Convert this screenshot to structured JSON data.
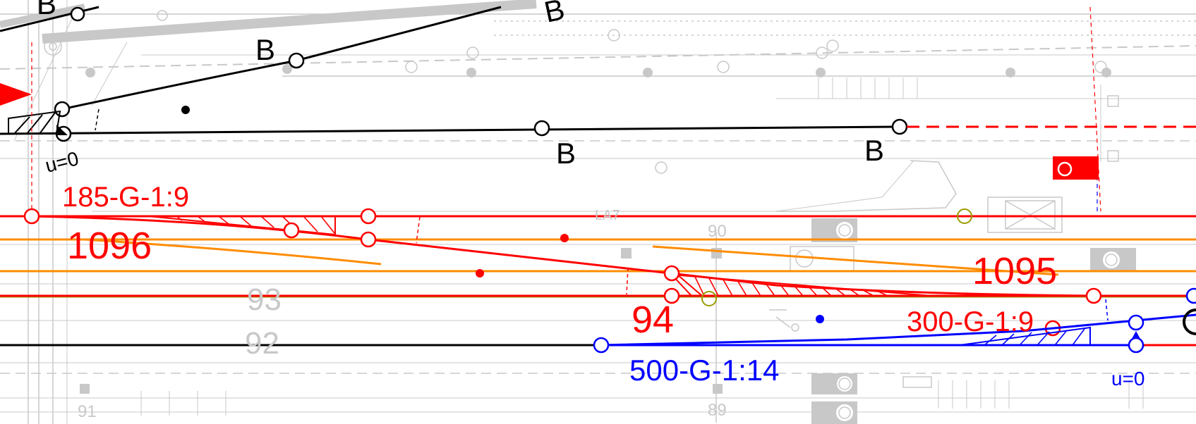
{
  "labels": {
    "b1": "B",
    "b2": "B",
    "b3": "B",
    "b4": "B",
    "b5": "B",
    "u0_left": "u=0",
    "u0_right": "u=0",
    "switch_185": "185-G-1:9",
    "num_1096": "1096",
    "num_1095": "1095",
    "num_94": "94",
    "switch_300": "300-G-1:9",
    "switch_500": "500-G-1:14",
    "track_93": "93",
    "track_92": "92",
    "gray_90": "90",
    "gray_89": "89",
    "gray_91": "91",
    "gray_la7": "LA7"
  },
  "colors": {
    "red": "#ff0000",
    "orange": "#ff8c00",
    "blue": "#0000ff",
    "black": "#000000",
    "gray": "#c8c8c8",
    "olive": "#9a9a00"
  },
  "icons": {
    "signal_red": "red-signal-box-icon",
    "arrow_red": "red-triangle-arrow-icon",
    "blue_triangle": "blue-triangle-marker-icon"
  }
}
